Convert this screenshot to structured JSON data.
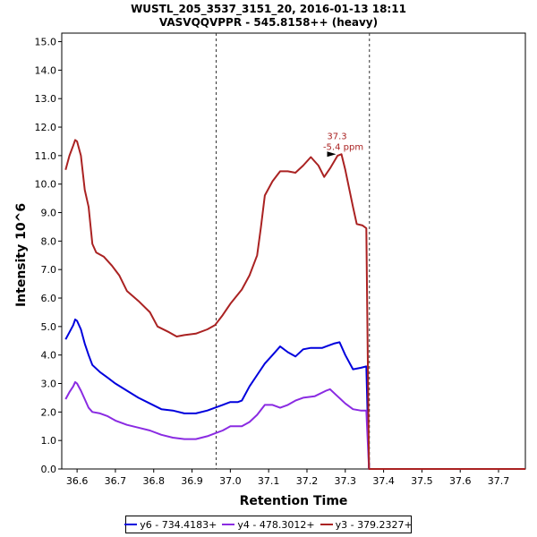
{
  "chart_data": {
    "type": "line",
    "title": "WUSTL_205_3537_3151_20, 2016-01-13 18:11",
    "subtitle": "VASVQQVPPR - 545.8158++ (heavy)",
    "xlabel": "Retention Time",
    "ylabel": "Intensity 10^6",
    "xlim": [
      36.56,
      37.77
    ],
    "ylim": [
      0,
      15.3
    ],
    "x_ticks": [
      "36.6",
      "36.7",
      "36.8",
      "36.9",
      "37.0",
      "37.1",
      "37.2",
      "37.3",
      "37.4",
      "37.5",
      "37.6",
      "37.7"
    ],
    "y_ticks": [
      "0.0",
      "1.0",
      "2.0",
      "3.0",
      "4.0",
      "5.0",
      "6.0",
      "7.0",
      "8.0",
      "9.0",
      "10.0",
      "11.0",
      "12.0",
      "13.0",
      "14.0",
      "15.0"
    ],
    "vlines": [
      36.963,
      37.363
    ],
    "annotation": {
      "line1": "37.3",
      "line2": "-5.4 ppm",
      "x": 37.29,
      "y": 11.05
    },
    "legend_placement": "bottom",
    "series": [
      {
        "name": "y6 - 734.4183+",
        "color": "#0000dd",
        "points": [
          [
            36.57,
            4.55
          ],
          [
            36.58,
            4.8
          ],
          [
            36.59,
            5.05
          ],
          [
            36.595,
            5.25
          ],
          [
            36.6,
            5.2
          ],
          [
            36.61,
            4.9
          ],
          [
            36.62,
            4.4
          ],
          [
            36.63,
            4.0
          ],
          [
            36.64,
            3.65
          ],
          [
            36.66,
            3.4
          ],
          [
            36.68,
            3.2
          ],
          [
            36.7,
            3.0
          ],
          [
            36.73,
            2.75
          ],
          [
            36.76,
            2.5
          ],
          [
            36.79,
            2.3
          ],
          [
            36.82,
            2.1
          ],
          [
            36.85,
            2.05
          ],
          [
            36.88,
            1.95
          ],
          [
            36.91,
            1.95
          ],
          [
            36.94,
            2.05
          ],
          [
            36.96,
            2.15
          ],
          [
            36.98,
            2.25
          ],
          [
            37.0,
            2.35
          ],
          [
            37.02,
            2.35
          ],
          [
            37.03,
            2.4
          ],
          [
            37.05,
            2.9
          ],
          [
            37.07,
            3.3
          ],
          [
            37.09,
            3.7
          ],
          [
            37.11,
            4.0
          ],
          [
            37.13,
            4.3
          ],
          [
            37.15,
            4.1
          ],
          [
            37.17,
            3.95
          ],
          [
            37.19,
            4.2
          ],
          [
            37.21,
            4.25
          ],
          [
            37.24,
            4.25
          ],
          [
            37.25,
            4.3
          ],
          [
            37.27,
            4.4
          ],
          [
            37.285,
            4.45
          ],
          [
            37.3,
            4.0
          ],
          [
            37.32,
            3.5
          ],
          [
            37.34,
            3.55
          ],
          [
            37.355,
            3.6
          ],
          [
            37.362,
            0.0
          ],
          [
            37.77,
            0.0
          ]
        ]
      },
      {
        "name": "y4 - 478.3012+",
        "color": "#8a2be2",
        "points": [
          [
            36.57,
            2.45
          ],
          [
            36.58,
            2.7
          ],
          [
            36.59,
            2.9
          ],
          [
            36.595,
            3.05
          ],
          [
            36.6,
            3.0
          ],
          [
            36.61,
            2.75
          ],
          [
            36.62,
            2.45
          ],
          [
            36.63,
            2.15
          ],
          [
            36.64,
            2.0
          ],
          [
            36.66,
            1.95
          ],
          [
            36.68,
            1.85
          ],
          [
            36.7,
            1.7
          ],
          [
            36.73,
            1.55
          ],
          [
            36.76,
            1.45
          ],
          [
            36.79,
            1.35
          ],
          [
            36.82,
            1.2
          ],
          [
            36.85,
            1.1
          ],
          [
            36.88,
            1.05
          ],
          [
            36.91,
            1.05
          ],
          [
            36.94,
            1.15
          ],
          [
            36.96,
            1.25
          ],
          [
            36.98,
            1.35
          ],
          [
            37.0,
            1.5
          ],
          [
            37.03,
            1.5
          ],
          [
            37.05,
            1.65
          ],
          [
            37.07,
            1.9
          ],
          [
            37.09,
            2.25
          ],
          [
            37.11,
            2.25
          ],
          [
            37.13,
            2.15
          ],
          [
            37.15,
            2.25
          ],
          [
            37.17,
            2.4
          ],
          [
            37.19,
            2.5
          ],
          [
            37.22,
            2.55
          ],
          [
            37.25,
            2.75
          ],
          [
            37.26,
            2.8
          ],
          [
            37.28,
            2.55
          ],
          [
            37.3,
            2.3
          ],
          [
            37.32,
            2.1
          ],
          [
            37.34,
            2.05
          ],
          [
            37.355,
            2.05
          ],
          [
            37.362,
            0.0
          ],
          [
            37.77,
            0.0
          ]
        ]
      },
      {
        "name": "y3 - 379.2327+",
        "color": "#aa2222",
        "points": [
          [
            36.57,
            10.5
          ],
          [
            36.58,
            11.0
          ],
          [
            36.59,
            11.35
          ],
          [
            36.595,
            11.55
          ],
          [
            36.6,
            11.5
          ],
          [
            36.61,
            11.0
          ],
          [
            36.62,
            9.8
          ],
          [
            36.63,
            9.2
          ],
          [
            36.64,
            7.9
          ],
          [
            36.65,
            7.6
          ],
          [
            36.67,
            7.45
          ],
          [
            36.69,
            7.15
          ],
          [
            36.71,
            6.8
          ],
          [
            36.73,
            6.25
          ],
          [
            36.76,
            5.9
          ],
          [
            36.79,
            5.5
          ],
          [
            36.81,
            5.0
          ],
          [
            36.84,
            4.8
          ],
          [
            36.86,
            4.65
          ],
          [
            36.88,
            4.7
          ],
          [
            36.91,
            4.75
          ],
          [
            36.94,
            4.9
          ],
          [
            36.96,
            5.05
          ],
          [
            36.98,
            5.4
          ],
          [
            37.0,
            5.8
          ],
          [
            37.03,
            6.3
          ],
          [
            37.05,
            6.8
          ],
          [
            37.07,
            7.5
          ],
          [
            37.08,
            8.5
          ],
          [
            37.09,
            9.6
          ],
          [
            37.11,
            10.1
          ],
          [
            37.13,
            10.45
          ],
          [
            37.15,
            10.45
          ],
          [
            37.17,
            10.4
          ],
          [
            37.19,
            10.65
          ],
          [
            37.21,
            10.95
          ],
          [
            37.23,
            10.65
          ],
          [
            37.245,
            10.25
          ],
          [
            37.26,
            10.55
          ],
          [
            37.28,
            11.0
          ],
          [
            37.29,
            11.05
          ],
          [
            37.3,
            10.5
          ],
          [
            37.32,
            9.2
          ],
          [
            37.33,
            8.6
          ],
          [
            37.345,
            8.55
          ],
          [
            37.355,
            8.45
          ],
          [
            37.362,
            0.0
          ],
          [
            37.77,
            0.0
          ]
        ]
      }
    ]
  }
}
